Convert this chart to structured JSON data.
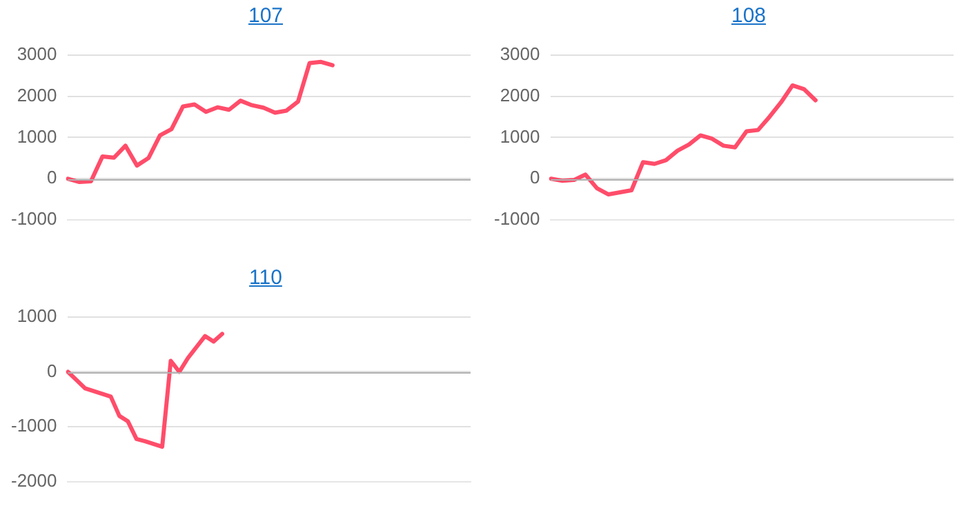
{
  "chart_data": [
    {
      "type": "line",
      "title": "107",
      "categories": [
        null,
        null,
        null,
        null,
        null,
        null,
        null,
        null,
        null,
        null,
        null,
        null,
        null,
        null,
        null,
        null,
        null,
        null,
        null,
        null,
        null,
        null,
        null,
        null,
        null,
        null,
        null,
        null,
        null,
        null,
        null,
        null,
        null,
        null,
        null,
        null
      ],
      "series": [
        {
          "color": "#ff4d6a",
          "values": [
            0,
            -80,
            -60,
            540,
            510,
            800,
            320,
            500,
            1050,
            1200,
            1750,
            1800,
            1620,
            1730,
            1670,
            1890,
            1780,
            1720,
            1600,
            1650,
            1870,
            2800,
            2830,
            2750,
            null,
            null,
            null,
            null,
            null,
            null,
            null,
            null,
            null,
            null,
            null,
            null
          ]
        }
      ],
      "ylim": [
        -1000,
        3000
      ],
      "yticks": [
        -1000,
        0,
        1000,
        2000,
        3000
      ],
      "grid": "y",
      "marker": "none",
      "legend": false,
      "ref_lines": [
        {
          "axis": "y",
          "value": 0,
          "color": "#b0b0b0"
        }
      ]
    },
    {
      "type": "line",
      "title": "108",
      "categories": [
        null,
        null,
        null,
        null,
        null,
        null,
        null,
        null,
        null,
        null,
        null,
        null,
        null,
        null,
        null,
        null,
        null,
        null,
        null,
        null,
        null,
        null,
        null,
        null,
        null,
        null,
        null,
        null,
        null,
        null,
        null,
        null,
        null,
        null,
        null,
        null
      ],
      "series": [
        {
          "color": "#ff4d6a",
          "values": [
            0,
            -50,
            -30,
            100,
            -230,
            -380,
            -330,
            -280,
            400,
            360,
            450,
            680,
            830,
            1050,
            970,
            800,
            760,
            1150,
            1180,
            1500,
            1850,
            2260,
            2170,
            1900,
            null,
            null,
            null,
            null,
            null,
            null,
            null,
            null,
            null,
            null,
            null,
            null
          ]
        }
      ],
      "ylim": [
        -1000,
        3000
      ],
      "yticks": [
        -1000,
        0,
        1000,
        2000,
        3000
      ],
      "grid": "y",
      "marker": "none",
      "legend": false,
      "ref_lines": [
        {
          "axis": "y",
          "value": 0,
          "color": "#b0b0b0"
        }
      ]
    },
    {
      "type": "line",
      "title": "110",
      "categories": [
        null,
        null,
        null,
        null,
        null,
        null,
        null,
        null,
        null,
        null,
        null,
        null,
        null,
        null,
        null,
        null,
        null,
        null,
        null,
        null,
        null,
        null,
        null,
        null,
        null,
        null,
        null,
        null,
        null,
        null,
        null,
        null,
        null,
        null,
        null,
        null,
        null,
        null,
        null,
        null,
        null,
        null,
        null,
        null,
        null,
        null,
        null,
        null
      ],
      "series": [
        {
          "color": "#ff4d6a",
          "values": [
            0,
            -150,
            -300,
            -350,
            -400,
            -450,
            -800,
            -900,
            -1220,
            -1260,
            -1310,
            -1360,
            200,
            0,
            250,
            450,
            650,
            550,
            690,
            null,
            null,
            null,
            null,
            null,
            null,
            null,
            null,
            null,
            null,
            null,
            null,
            null,
            null,
            null,
            null,
            null,
            null,
            null,
            null,
            null,
            null,
            null,
            null,
            null,
            null,
            null,
            null,
            null
          ]
        }
      ],
      "ylim": [
        -2000,
        1000
      ],
      "yticks": [
        -2000,
        -1000,
        0,
        1000
      ],
      "grid": "y",
      "marker": "none",
      "legend": false,
      "ref_lines": [
        {
          "axis": "y",
          "value": 0,
          "color": "#b0b0b0"
        }
      ]
    }
  ]
}
